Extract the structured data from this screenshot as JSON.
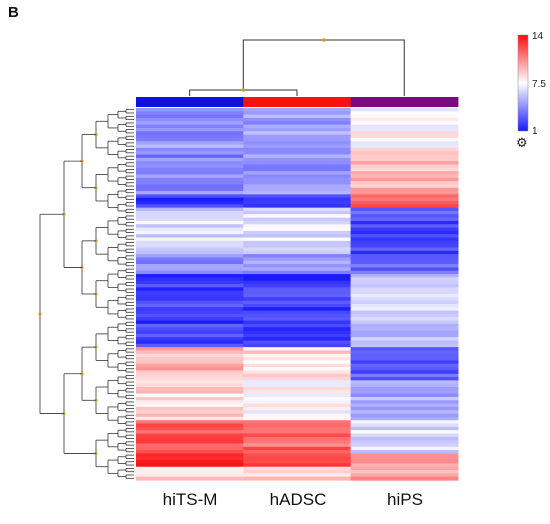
{
  "panel_label": "B",
  "colors": {
    "low": "#1a1aff",
    "mid": "#ffffff",
    "high": "#ff0d0d",
    "group_hiTS-M": "#1010e0",
    "group_hADSC": "#ff1010",
    "group_hiPS": "#7a0a80",
    "dendro_line": "#333333",
    "dendro_node": "#c8a028"
  },
  "chart_data": {
    "type": "heatmap",
    "title": "",
    "columns": [
      "hiTS-M",
      "hADSC",
      "hiPS"
    ],
    "color_scale": {
      "min": 1,
      "mid": 7.5,
      "max": 14,
      "tick_labels": [
        "14",
        "7.5",
        "1"
      ]
    },
    "column_dendrogram": "hiTS-M and hADSC cluster first, then join hiPS",
    "row_blocks": [
      {
        "rows": 12,
        "values": [
          4.5,
          4.8,
          7.5
        ]
      },
      {
        "rows": 14,
        "values": [
          4.0,
          4.5,
          9.5
        ]
      },
      {
        "rows": 4,
        "values": [
          2.0,
          2.2,
          11.5
        ]
      },
      {
        "rows": 14,
        "values": [
          6.5,
          6.8,
          2.5
        ]
      },
      {
        "rows": 6,
        "values": [
          4.5,
          4.8,
          3.0
        ]
      },
      {
        "rows": 22,
        "values": [
          2.0,
          2.0,
          6.0
        ]
      },
      {
        "rows": 10,
        "values": [
          9.5,
          8.5,
          3.0
        ]
      },
      {
        "rows": 12,
        "values": [
          8.5,
          7.5,
          5.0
        ]
      },
      {
        "rows": 10,
        "values": [
          12.0,
          11.5,
          6.5
        ]
      },
      {
        "rows": 4,
        "values": [
          13.5,
          13.0,
          10.5
        ]
      },
      {
        "rows": 4,
        "values": [
          9.0,
          8.5,
          10.0
        ]
      }
    ]
  }
}
